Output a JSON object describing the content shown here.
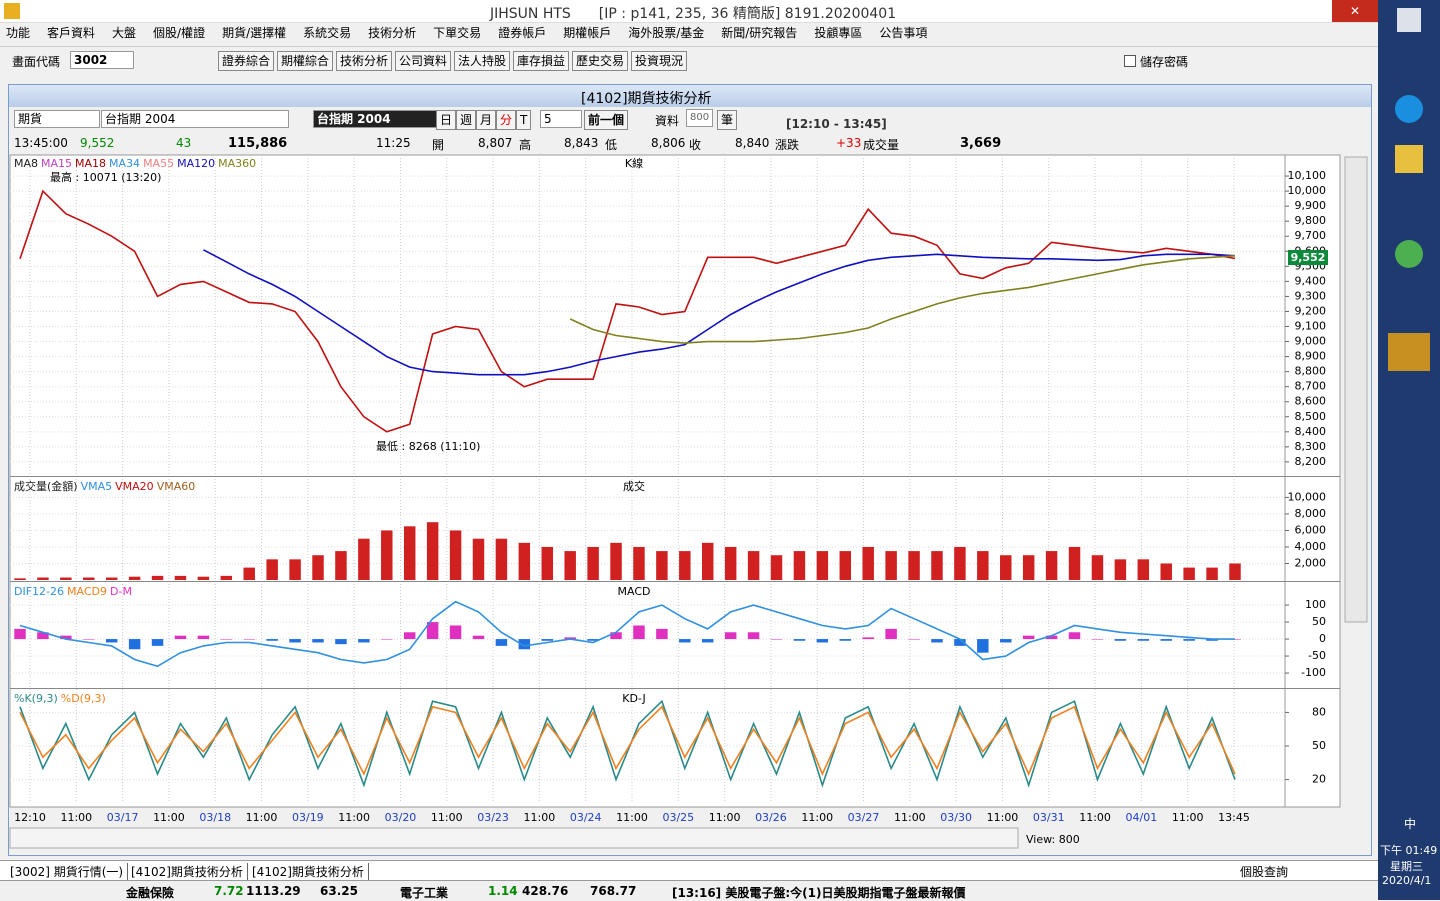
{
  "window_title": "JIHSUN HTS　　[IP : p141, 235, 36 精簡版] 8191.20200401",
  "menu": [
    "功能",
    "客戶資料",
    "大盤",
    "個股/權證",
    "期貨/選擇權",
    "系統交易",
    "技術分析",
    "下單交易",
    "證券帳戶",
    "期權帳戶",
    "海外股票/基金",
    "新聞/研究報告",
    "投顧專區",
    "公告事項"
  ],
  "toolbar": {
    "code_label": "畫面代碼",
    "code": "3002",
    "buttons": [
      "證券綜合",
      "期權綜合",
      "技術分析",
      "公司資料",
      "法人持股",
      "庫存損益",
      "歷史交易",
      "投資現況"
    ],
    "save_password": "儲存密碼"
  },
  "subwindow": {
    "title": "[4102]期貨技術分析",
    "market": "期貨",
    "product": "台指期 2004",
    "product_name": "台指期 2004",
    "periods": [
      "日",
      "週",
      "月",
      "分",
      "T"
    ],
    "interval": "5",
    "prev": "前一個",
    "data_label": "資料",
    "data_count": "800",
    "data_unit": "筆",
    "session": "[12:10 - 13:45]"
  },
  "quote": {
    "time": "13:45:00",
    "price": "9,552",
    "change": "43",
    "volume_total": "115,886",
    "bar_time": "11:25",
    "open_label": "開",
    "open": "8,807",
    "high_label": "高",
    "high": "8,843",
    "low_label": "低",
    "low": "8,806",
    "close_label": "收",
    "close": "8,840",
    "change_label": "漲跌",
    "bar_change": "+33",
    "vol_label": "成交量",
    "bar_volume": "3,669"
  },
  "time_axis": [
    "12:10",
    "11:00",
    "03/17",
    "11:00",
    "03/18",
    "11:00",
    "03/19",
    "11:00",
    "03/20",
    "11:00",
    "03/23",
    "11:00",
    "03/24",
    "11:00",
    "03/25",
    "11:00",
    "03/26",
    "11:00",
    "03/27",
    "11:00",
    "03/30",
    "11:00",
    "03/31",
    "11:00",
    "04/01",
    "11:00",
    "13:45"
  ],
  "chart_data": [
    {
      "type": "line",
      "title": "K線",
      "ylim": [
        8113,
        10240
      ],
      "yticks": [
        {
          "value": 8200,
          "label": "8,200"
        },
        {
          "value": 8300,
          "label": "8,300"
        },
        {
          "value": 8400,
          "label": "8,400"
        },
        {
          "value": 8500,
          "label": "8,500"
        },
        {
          "value": 8600,
          "label": "8,600"
        },
        {
          "value": 8700,
          "label": "8,700"
        },
        {
          "value": 8800,
          "label": "8,800"
        },
        {
          "value": 8900,
          "label": "8,900"
        },
        {
          "value": 9000,
          "label": "9,000"
        },
        {
          "value": 9100,
          "label": "9,100"
        },
        {
          "value": 9200,
          "label": "9,200"
        },
        {
          "value": 9300,
          "label": "9,300"
        },
        {
          "value": 9400,
          "label": "9,400"
        },
        {
          "value": 9500,
          "label": "9,500"
        },
        {
          "value": 9600,
          "label": "9,600"
        },
        {
          "value": 9700,
          "label": "9,700"
        },
        {
          "value": 9800,
          "label": "9,800"
        },
        {
          "value": 9900,
          "label": "9,900"
        },
        {
          "value": 10000,
          "label": "10,000"
        },
        {
          "value": 10100,
          "label": "10,100"
        }
      ],
      "legend": [
        {
          "name": "MA8",
          "color": "#202020"
        },
        {
          "name": "MA15",
          "color": "#c040c0"
        },
        {
          "name": "MA18",
          "color": "#a00000"
        },
        {
          "name": "MA34",
          "color": "#3090e0"
        },
        {
          "name": "MA55",
          "color": "#f08080"
        },
        {
          "name": "MA120",
          "color": "#1010c0"
        },
        {
          "name": "MA360",
          "color": "#808020"
        }
      ],
      "annotations": [
        "最高 : 10071 (13:20)",
        "最低 : 8268 (11:10)"
      ],
      "last_label": "9,552",
      "series": [
        {
          "color": "#c01010",
          "values": [
            9550,
            10000,
            9850,
            9780,
            9700,
            9600,
            9300,
            9380,
            9400,
            9330,
            9260,
            9250,
            9200,
            9000,
            8700,
            8500,
            8400,
            8450,
            9050,
            9100,
            9080,
            8800,
            8700,
            8750,
            8750,
            8750,
            9250,
            9230,
            9180,
            9200,
            9560,
            9560,
            9560,
            9520,
            9560,
            9600,
            9640,
            9880,
            9720,
            9700,
            9640,
            9450,
            9420,
            9490,
            9520,
            9660,
            9640,
            9620,
            9600,
            9590,
            9620,
            9600,
            9580,
            9552
          ]
        },
        {
          "name": "MA120",
          "color": "#1010c0",
          "values": [
            null,
            null,
            null,
            null,
            null,
            null,
            null,
            null,
            9610,
            9530,
            9450,
            9380,
            9300,
            9200,
            9100,
            9000,
            8900,
            8830,
            8800,
            8790,
            8780,
            8780,
            8780,
            8800,
            8830,
            8870,
            8900,
            8930,
            8950,
            8980,
            9080,
            9180,
            9260,
            9330,
            9390,
            9450,
            9500,
            9540,
            9560,
            9570,
            9580,
            9570,
            9560,
            9555,
            9550,
            9550,
            9545,
            9540,
            9545,
            9570,
            9580,
            9580,
            9580,
            9570
          ]
        },
        {
          "name": "MA360",
          "color": "#808020",
          "values": [
            null,
            null,
            null,
            null,
            null,
            null,
            null,
            null,
            null,
            null,
            null,
            null,
            null,
            null,
            null,
            null,
            null,
            null,
            null,
            null,
            null,
            null,
            null,
            null,
            9150,
            9080,
            9040,
            9020,
            9000,
            8990,
            9000,
            9000,
            9000,
            9010,
            9020,
            9040,
            9060,
            9090,
            9150,
            9200,
            9250,
            9290,
            9320,
            9340,
            9360,
            9390,
            9420,
            9450,
            9480,
            9510,
            9530,
            9550,
            9560,
            9570
          ]
        }
      ]
    },
    {
      "type": "bar",
      "title": "成交",
      "ylim": [
        0,
        12350
      ],
      "yticks": [
        {
          "value": 2000,
          "label": "2,000"
        },
        {
          "value": 4000,
          "label": "4,000"
        },
        {
          "value": 6000,
          "label": "6,000"
        },
        {
          "value": 8000,
          "label": "8,000"
        },
        {
          "value": 10000,
          "label": "10,000"
        }
      ],
      "legend": [
        {
          "name": "成交量(金額)",
          "color": "#202020"
        },
        {
          "name": "VMA5",
          "color": "#3090e0"
        },
        {
          "name": "VMA20",
          "color": "#c01010"
        },
        {
          "name": "VMA60",
          "color": "#a06020"
        }
      ],
      "series": [
        {
          "color": "#d02020",
          "values": [
            200,
            300,
            300,
            300,
            300,
            400,
            500,
            500,
            400,
            500,
            1500,
            2500,
            2500,
            3000,
            3500,
            5000,
            6000,
            6500,
            7000,
            6000,
            5000,
            5000,
            4500,
            4000,
            3500,
            4000,
            4500,
            4000,
            3500,
            3500,
            4500,
            4000,
            3500,
            3000,
            3500,
            3500,
            3500,
            4000,
            3500,
            3500,
            3500,
            4000,
            3500,
            3000,
            3000,
            3500,
            4000,
            3000,
            2500,
            2500,
            2000,
            1500,
            1500,
            2000
          ]
        }
      ]
    },
    {
      "type": "line",
      "title": "MACD",
      "ylim": [
        -144,
        165
      ],
      "yticks": [
        -100,
        -50,
        0,
        50,
        100
      ],
      "legend": [
        {
          "name": "DIF12-26",
          "color": "#3090e0"
        },
        {
          "name": "MACD9",
          "color": "#f08020"
        },
        {
          "name": "D-M",
          "color": "#e030c0"
        }
      ],
      "series": [
        {
          "style": "bar",
          "color": "#e030c0",
          "negative_color": "#2070e0",
          "values": [
            30,
            20,
            10,
            0,
            -10,
            -30,
            -20,
            10,
            10,
            0,
            0,
            -5,
            -10,
            -10,
            -15,
            -10,
            0,
            20,
            50,
            40,
            10,
            -20,
            -30,
            -5,
            5,
            -5,
            20,
            40,
            30,
            -10,
            -10,
            20,
            20,
            0,
            -5,
            -10,
            -5,
            5,
            30,
            0,
            -10,
            -20,
            -40,
            -10,
            10,
            10,
            20,
            0,
            -5,
            -5,
            -5,
            -5,
            -5,
            0
          ]
        },
        {
          "color": "#3090e0",
          "values": [
            40,
            20,
            0,
            -10,
            -20,
            -60,
            -80,
            -40,
            -20,
            -10,
            -10,
            -20,
            -30,
            -40,
            -60,
            -70,
            -60,
            -30,
            60,
            110,
            80,
            20,
            -20,
            -10,
            0,
            -10,
            20,
            80,
            100,
            60,
            30,
            80,
            100,
            80,
            60,
            40,
            30,
            40,
            90,
            60,
            30,
            0,
            -60,
            -50,
            -10,
            10,
            40,
            30,
            20,
            15,
            10,
            5,
            0,
            0
          ]
        }
      ]
    },
    {
      "type": "line",
      "title": "KD-J",
      "ylim": [
        0,
        100
      ],
      "yticks": [
        20,
        50,
        80
      ],
      "legend": [
        {
          "name": "%K(9,3)",
          "color": "#2a8a8a"
        },
        {
          "name": "%D(9,3)",
          "color": "#f08020"
        }
      ],
      "series": [
        {
          "color": "#2a8a8a",
          "values": [
            85,
            30,
            70,
            20,
            60,
            80,
            25,
            70,
            40,
            75,
            20,
            60,
            85,
            30,
            70,
            15,
            80,
            25,
            90,
            85,
            30,
            80,
            20,
            75,
            40,
            85,
            20,
            70,
            90,
            30,
            80,
            20,
            70,
            25,
            80,
            15,
            75,
            85,
            30,
            70,
            20,
            85,
            40,
            75,
            15,
            80,
            90,
            20,
            70,
            25,
            85,
            30,
            75,
            20
          ]
        },
        {
          "color": "#f08020",
          "values": [
            80,
            40,
            60,
            30,
            55,
            75,
            35,
            65,
            45,
            70,
            30,
            55,
            80,
            40,
            65,
            25,
            75,
            35,
            85,
            80,
            40,
            75,
            30,
            70,
            45,
            80,
            30,
            65,
            85,
            40,
            75,
            30,
            65,
            35,
            75,
            25,
            70,
            80,
            40,
            65,
            30,
            80,
            45,
            70,
            25,
            75,
            85,
            30,
            65,
            35,
            80,
            40,
            70,
            25
          ]
        }
      ]
    }
  ],
  "scroll": {
    "view": "View: 800"
  },
  "tabs": [
    "[3002] 期貨行情(一)",
    "[4102]期貨技術分析",
    "[4102]期貨技術分析"
  ],
  "query": "個股查詢",
  "ticker": {
    "name1": "金融保險",
    "chg1": "7.72",
    "idx1": "1113.29",
    "amt1": "63.25",
    "name2": "電子工業",
    "chg2": "1.14",
    "idx2": "428.76",
    "amt2": "768.77",
    "news": "[13:16] 美股電子盤:今(1)日美股期指電子盤最新報價"
  },
  "clock": {
    "ime": "中",
    "time": "下午 01:49",
    "weekday": "星期三",
    "date": "2020/4/1"
  }
}
